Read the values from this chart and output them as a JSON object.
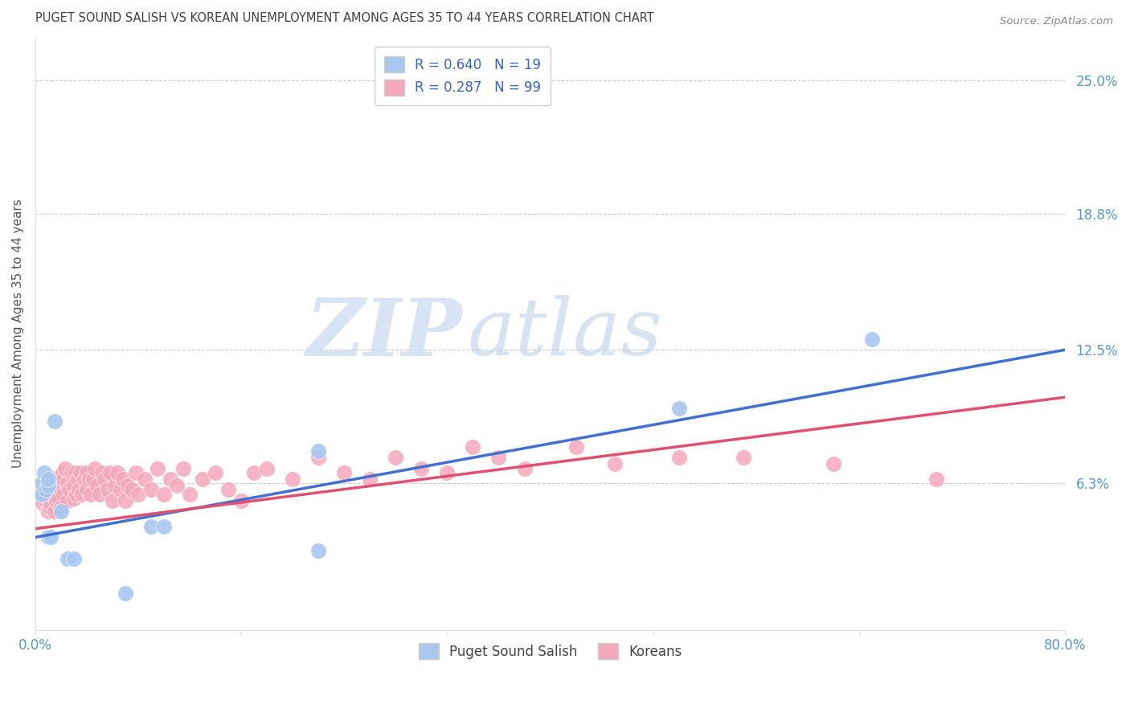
{
  "title": "PUGET SOUND SALISH VS KOREAN UNEMPLOYMENT AMONG AGES 35 TO 44 YEARS CORRELATION CHART",
  "source": "Source: ZipAtlas.com",
  "ylabel": "Unemployment Among Ages 35 to 44 years",
  "xlim": [
    0.0,
    0.8
  ],
  "ylim": [
    -0.005,
    0.27
  ],
  "yticks": [
    0.063,
    0.125,
    0.188,
    0.25
  ],
  "ytick_labels": [
    "6.3%",
    "12.5%",
    "18.8%",
    "25.0%"
  ],
  "xticks": [
    0.0,
    0.16,
    0.32,
    0.48,
    0.64,
    0.8
  ],
  "xtick_labels": [
    "0.0%",
    "",
    "",
    "",
    "",
    "80.0%"
  ],
  "legend_label1": "R = 0.640   N = 19",
  "legend_label2": "R = 0.287   N = 99",
  "watermark_zip": "ZIP",
  "watermark_atlas": "atlas",
  "blue_color": "#A8C8F0",
  "pink_color": "#F4A8BC",
  "blue_line_color": "#4070D0",
  "pink_line_color": "#E05070",
  "title_color": "#404040",
  "source_color": "#888888",
  "ylabel_color": "#555555",
  "tick_color_blue": "#5599CC",
  "grid_color": "#CCCCCC",
  "background_color": "#FFFFFF",
  "blue_scatter_x": [
    0.005,
    0.005,
    0.007,
    0.008,
    0.01,
    0.01,
    0.01,
    0.012,
    0.015,
    0.02,
    0.025,
    0.03,
    0.07,
    0.09,
    0.1,
    0.22,
    0.22,
    0.5,
    0.65
  ],
  "blue_scatter_y": [
    0.058,
    0.063,
    0.068,
    0.06,
    0.062,
    0.065,
    0.038,
    0.038,
    0.092,
    0.05,
    0.028,
    0.028,
    0.012,
    0.043,
    0.043,
    0.078,
    0.032,
    0.098,
    0.13
  ],
  "pink_scatter_x": [
    0.003,
    0.004,
    0.005,
    0.005,
    0.006,
    0.006,
    0.007,
    0.007,
    0.008,
    0.008,
    0.009,
    0.009,
    0.01,
    0.01,
    0.01,
    0.01,
    0.011,
    0.011,
    0.012,
    0.012,
    0.013,
    0.014,
    0.015,
    0.015,
    0.016,
    0.017,
    0.018,
    0.018,
    0.02,
    0.02,
    0.021,
    0.022,
    0.022,
    0.023,
    0.025,
    0.025,
    0.026,
    0.028,
    0.03,
    0.03,
    0.031,
    0.032,
    0.033,
    0.034,
    0.035,
    0.036,
    0.038,
    0.04,
    0.04,
    0.042,
    0.043,
    0.045,
    0.046,
    0.048,
    0.05,
    0.052,
    0.054,
    0.056,
    0.058,
    0.06,
    0.062,
    0.064,
    0.066,
    0.068,
    0.07,
    0.072,
    0.075,
    0.078,
    0.08,
    0.085,
    0.09,
    0.095,
    0.1,
    0.105,
    0.11,
    0.115,
    0.12,
    0.13,
    0.14,
    0.15,
    0.16,
    0.17,
    0.18,
    0.2,
    0.22,
    0.24,
    0.26,
    0.28,
    0.3,
    0.32,
    0.34,
    0.36,
    0.38,
    0.42,
    0.45,
    0.5,
    0.55,
    0.62,
    0.7
  ],
  "pink_scatter_y": [
    0.06,
    0.058,
    0.056,
    0.062,
    0.054,
    0.06,
    0.058,
    0.063,
    0.055,
    0.061,
    0.057,
    0.065,
    0.05,
    0.056,
    0.06,
    0.066,
    0.052,
    0.06,
    0.054,
    0.061,
    0.058,
    0.062,
    0.05,
    0.058,
    0.055,
    0.062,
    0.056,
    0.065,
    0.052,
    0.06,
    0.068,
    0.058,
    0.065,
    0.07,
    0.055,
    0.063,
    0.06,
    0.068,
    0.056,
    0.062,
    0.068,
    0.058,
    0.065,
    0.06,
    0.068,
    0.058,
    0.065,
    0.06,
    0.068,
    0.065,
    0.058,
    0.065,
    0.07,
    0.062,
    0.058,
    0.068,
    0.065,
    0.06,
    0.068,
    0.055,
    0.062,
    0.068,
    0.06,
    0.065,
    0.055,
    0.062,
    0.06,
    0.068,
    0.058,
    0.065,
    0.06,
    0.07,
    0.058,
    0.065,
    0.062,
    0.07,
    0.058,
    0.065,
    0.068,
    0.06,
    0.055,
    0.068,
    0.07,
    0.065,
    0.075,
    0.068,
    0.065,
    0.075,
    0.07,
    0.068,
    0.08,
    0.075,
    0.07,
    0.08,
    0.072,
    0.075,
    0.075,
    0.072,
    0.065
  ],
  "blue_trendline_x": [
    0.0,
    0.8
  ],
  "blue_trendline_y": [
    0.038,
    0.125
  ],
  "pink_trendline_x": [
    0.0,
    0.8
  ],
  "pink_trendline_y": [
    0.042,
    0.103
  ]
}
